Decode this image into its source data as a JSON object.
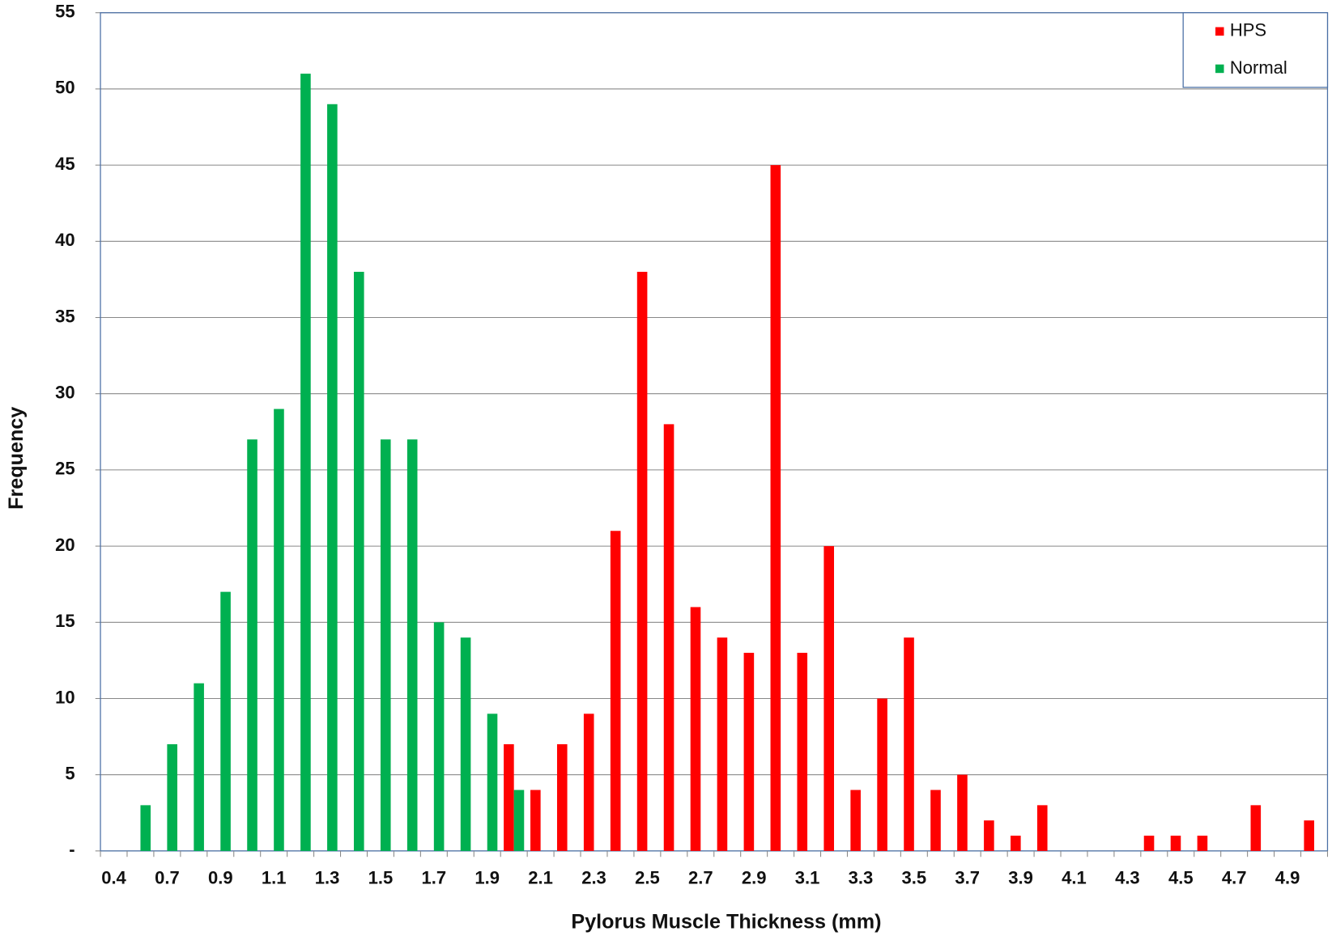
{
  "chart_data": {
    "type": "bar",
    "x_label": "Pylorus Muscle Thickness (mm)",
    "y_label": "Frequency",
    "categories": [
      "0.4",
      null,
      "0.7",
      null,
      "0.9",
      null,
      "1.1",
      null,
      "1.3",
      null,
      "1.5",
      null,
      "1.7",
      null,
      "1.9",
      null,
      "2.1",
      null,
      "2.3",
      null,
      "2.5",
      null,
      "2.7",
      null,
      "2.9",
      null,
      "3.1",
      null,
      "3.3",
      null,
      "3.5",
      null,
      "3.7",
      null,
      "3.9",
      null,
      "4.1",
      null,
      "4.3",
      null,
      "4.5",
      null,
      "4.7",
      null,
      "4.9",
      null
    ],
    "series": [
      {
        "name": "HPS",
        "color": "#ff0000",
        "values": [
          0,
          0,
          0,
          0,
          0,
          0,
          0,
          0,
          0,
          0,
          0,
          0,
          0,
          0,
          0,
          7,
          4,
          7,
          9,
          21,
          38,
          28,
          16,
          14,
          13,
          45,
          13,
          20,
          4,
          10,
          14,
          4,
          5,
          2,
          1,
          3,
          0,
          0,
          0,
          1,
          1,
          1,
          0,
          3,
          0,
          2
        ]
      },
      {
        "name": "Normal",
        "color": "#00b050",
        "values": [
          0,
          3,
          7,
          11,
          17,
          27,
          29,
          51,
          49,
          38,
          27,
          27,
          15,
          14,
          9,
          4,
          0,
          0,
          0,
          0,
          0,
          0,
          0,
          0,
          0,
          0,
          0,
          0,
          0,
          0,
          0,
          0,
          0,
          0,
          0,
          0,
          0,
          0,
          0,
          0,
          0,
          0,
          0,
          0,
          0,
          0
        ]
      }
    ],
    "ylim": [
      0,
      55
    ],
    "yticks": [
      {
        "value": 0,
        "label": "-"
      },
      5,
      10,
      15,
      20,
      25,
      30,
      35,
      40,
      45,
      50,
      55
    ],
    "grid": true,
    "legend": "top-right"
  }
}
